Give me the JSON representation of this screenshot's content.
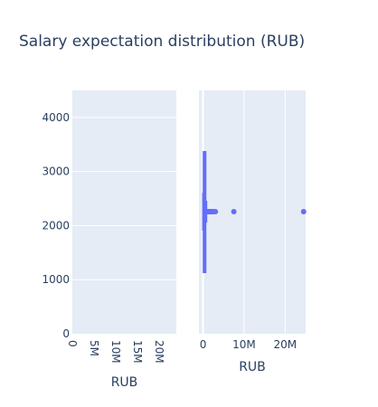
{
  "title": "Salary expectation distribution (RUB)",
  "colors": {
    "plot_bg": "#e5ecf6",
    "grid": "#ffffff",
    "series": "#636efa",
    "text": "#2a3f5f"
  },
  "chart_data": [
    {
      "type": "histogram",
      "xlabel": "RUB",
      "ylabel": "",
      "xlim": [
        0,
        24000000
      ],
      "ylim": [
        0,
        4500
      ],
      "xticks": [
        "0",
        "5M",
        "10M",
        "15M",
        "20M"
      ],
      "xtick_values": [
        0,
        5000000,
        10000000,
        15000000,
        20000000
      ],
      "yticks": [
        "0",
        "1000",
        "2000",
        "3000",
        "4000"
      ],
      "ytick_values": [
        0,
        1000,
        2000,
        3000,
        4000
      ],
      "grid": true,
      "bars": []
    },
    {
      "type": "box",
      "orientation": "horizontal",
      "xlabel": "RUB",
      "xlim": [
        -1000000,
        25000000
      ],
      "xticks": [
        "0",
        "10M",
        "20M"
      ],
      "xtick_values": [
        0,
        10000000,
        20000000
      ],
      "grid": true,
      "box": {
        "q1": 150000,
        "median": 200000,
        "q3": 300000,
        "whisker_low": 20000,
        "whisker_high": 800000
      },
      "outliers": [
        850000,
        900000,
        1000000,
        1100000,
        1200000,
        1300000,
        1400000,
        1500000,
        1600000,
        1700000,
        1800000,
        2000000,
        2200000,
        2500000,
        3000000,
        7500000,
        24500000
      ]
    }
  ]
}
